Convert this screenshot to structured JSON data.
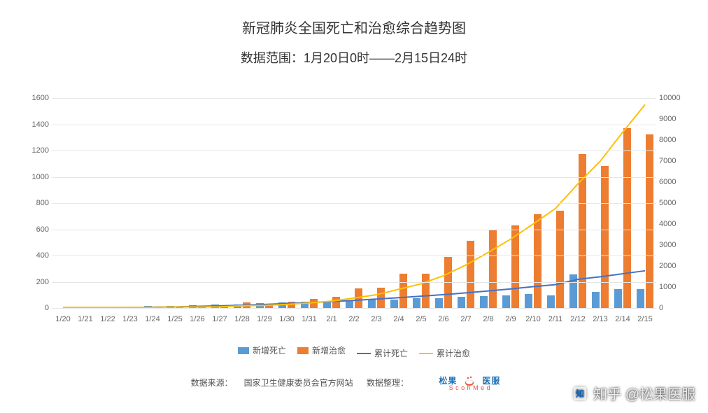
{
  "title": "新冠肺炎全国死亡和治愈综合趋势图",
  "subtitle": "数据范围：1月20日0时——2月15日24时",
  "chart": {
    "type": "bar+line",
    "background_color": "#ffffff",
    "grid_color": "#e6e6e6",
    "axis_text_color": "#666666",
    "title_fontsize": 20,
    "subtitle_fontsize": 18,
    "label_fontsize": 11,
    "categories": [
      "1/20",
      "1/21",
      "1/22",
      "1/23",
      "1/24",
      "1/25",
      "1/26",
      "1/27",
      "1/28",
      "1/29",
      "1/30",
      "1/31",
      "2/1",
      "2/2",
      "2/3",
      "2/4",
      "2/5",
      "2/6",
      "2/7",
      "2/8",
      "2/9",
      "2/10",
      "2/11",
      "2/12",
      "2/13",
      "2/14",
      "2/15"
    ],
    "y_left": {
      "min": 0,
      "max": 1600,
      "step": 200
    },
    "y_right": {
      "min": 0,
      "max": 10000,
      "step": 1000
    },
    "series": {
      "new_deaths": {
        "label": "新增死亡",
        "color": "#5b9bd5",
        "axis": "left",
        "data": [
          2,
          3,
          8,
          8,
          16,
          15,
          24,
          26,
          26,
          38,
          43,
          46,
          45,
          57,
          64,
          65,
          73,
          73,
          86,
          89,
          97,
          108,
          97,
          254,
          121,
          143,
          142
        ]
      },
      "new_cured": {
        "label": "新增治愈",
        "color": "#ed7d31",
        "axis": "left",
        "data": [
          0,
          0,
          0,
          2,
          4,
          11,
          9,
          9,
          43,
          21,
          47,
          72,
          85,
          147,
          157,
          262,
          261,
          387,
          510,
          600,
          632,
          716,
          744,
          1171,
          1081,
          1373,
          1323
        ]
      },
      "total_deaths": {
        "label": "累计死亡",
        "color": "#4472c4",
        "axis": "right",
        "data": [
          6,
          9,
          17,
          25,
          41,
          56,
          80,
          106,
          132,
          170,
          213,
          259,
          304,
          361,
          425,
          490,
          563,
          636,
          722,
          811,
          908,
          1016,
          1113,
          1367,
          1488,
          1631,
          1773
        ]
      },
      "total_cured": {
        "label": "累计治愈",
        "color": "#ffc000",
        "axis": "right",
        "data": [
          28,
          28,
          28,
          30,
          34,
          49,
          51,
          60,
          103,
          124,
          171,
          243,
          328,
          475,
          632,
          892,
          1153,
          1540,
          2050,
          2649,
          3281,
          3996,
          4740,
          5911,
          6992,
          8365,
          9688
        ]
      }
    },
    "line_width": 2,
    "bar_width_ratio": 0.36
  },
  "legend": {
    "items": [
      {
        "key": "new_deaths",
        "label": "新增死亡",
        "kind": "bar",
        "color": "#5b9bd5"
      },
      {
        "key": "new_cured",
        "label": "新增治愈",
        "kind": "bar",
        "color": "#ed7d31"
      },
      {
        "key": "total_deaths",
        "label": "累计死亡",
        "kind": "line",
        "color": "#4472c4"
      },
      {
        "key": "total_cured",
        "label": "累计治愈",
        "kind": "line",
        "color": "#ffc000"
      }
    ]
  },
  "source": {
    "from_label": "数据来源：",
    "from_value": "国家卫生健康委员会官方网站",
    "org_label": "数据整理：",
    "brand_cn": "松果  医服",
    "brand_en": "S c o h M e d"
  },
  "watermark": {
    "text": "知乎 @松果医服"
  }
}
